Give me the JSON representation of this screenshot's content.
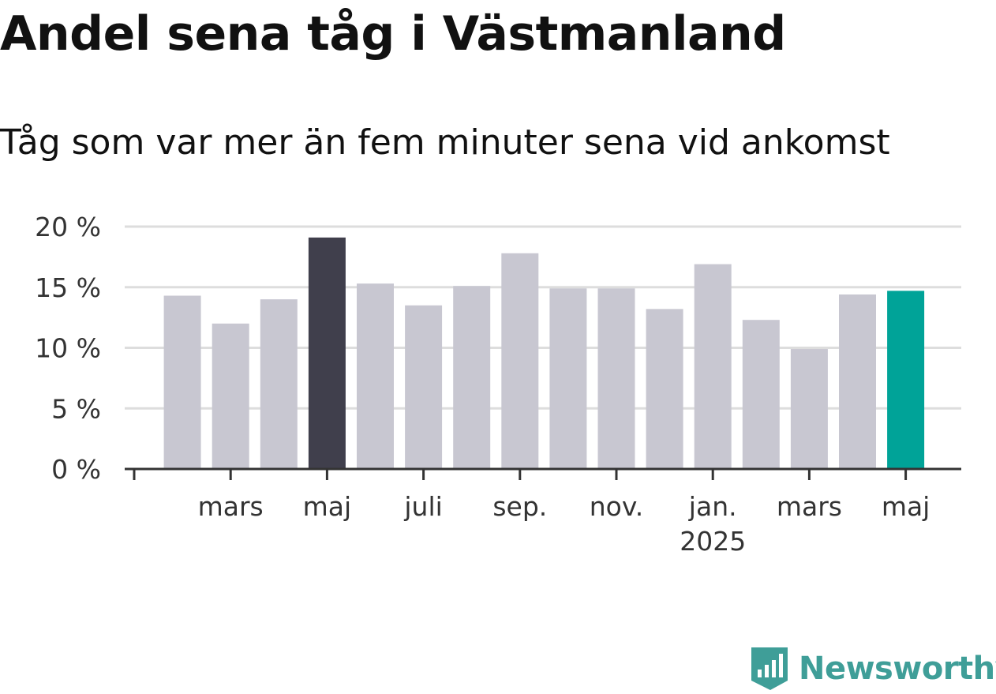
{
  "title": "Andel sena tåg i Västmanland",
  "subtitle": "Tåg som var mer än fem minuter sena vid ankomst",
  "brand": "Newsworthy",
  "colors": {
    "bar_default": "#c8c7d1",
    "bar_highlight_dark": "#403f4c",
    "bar_highlight_latest": "#00a398",
    "grid": "#dddddd",
    "axis": "#333333"
  },
  "chart_data": {
    "type": "bar",
    "unit": "%",
    "categories": [
      "2024-02",
      "2024-03",
      "2024-04",
      "2024-05",
      "2024-06",
      "2024-07",
      "2024-08",
      "2024-09",
      "2024-10",
      "2024-11",
      "2024-12",
      "2025-01",
      "2025-02",
      "2025-03",
      "2025-04",
      "2025-05"
    ],
    "values": [
      14.3,
      12.0,
      14.0,
      19.1,
      15.3,
      13.5,
      15.1,
      17.8,
      14.9,
      14.9,
      13.2,
      16.9,
      12.3,
      9.9,
      14.4,
      14.7
    ],
    "highlight": {
      "4": "bar_highlight_dark",
      "16": "bar_highlight_latest"
    },
    "ylim": [
      0,
      20
    ],
    "yticks": [
      {
        "value": 0,
        "label": "0 %"
      },
      {
        "value": 5,
        "label": "5 %"
      },
      {
        "value": 10,
        "label": "10 %"
      },
      {
        "value": 15,
        "label": "15 %"
      },
      {
        "value": 20,
        "label": "20 %"
      }
    ],
    "xticks": [
      {
        "index": 0,
        "label": ""
      },
      {
        "index": 2,
        "label": "mars"
      },
      {
        "index": 4,
        "label": "maj"
      },
      {
        "index": 6,
        "label": "juli"
      },
      {
        "index": 8,
        "label": "sep."
      },
      {
        "index": 10,
        "label": "nov."
      },
      {
        "index": 12,
        "label": "jan.",
        "sublabel": "2025"
      },
      {
        "index": 14,
        "label": "mars"
      },
      {
        "index": 16,
        "label": "maj"
      }
    ],
    "grid": true
  }
}
